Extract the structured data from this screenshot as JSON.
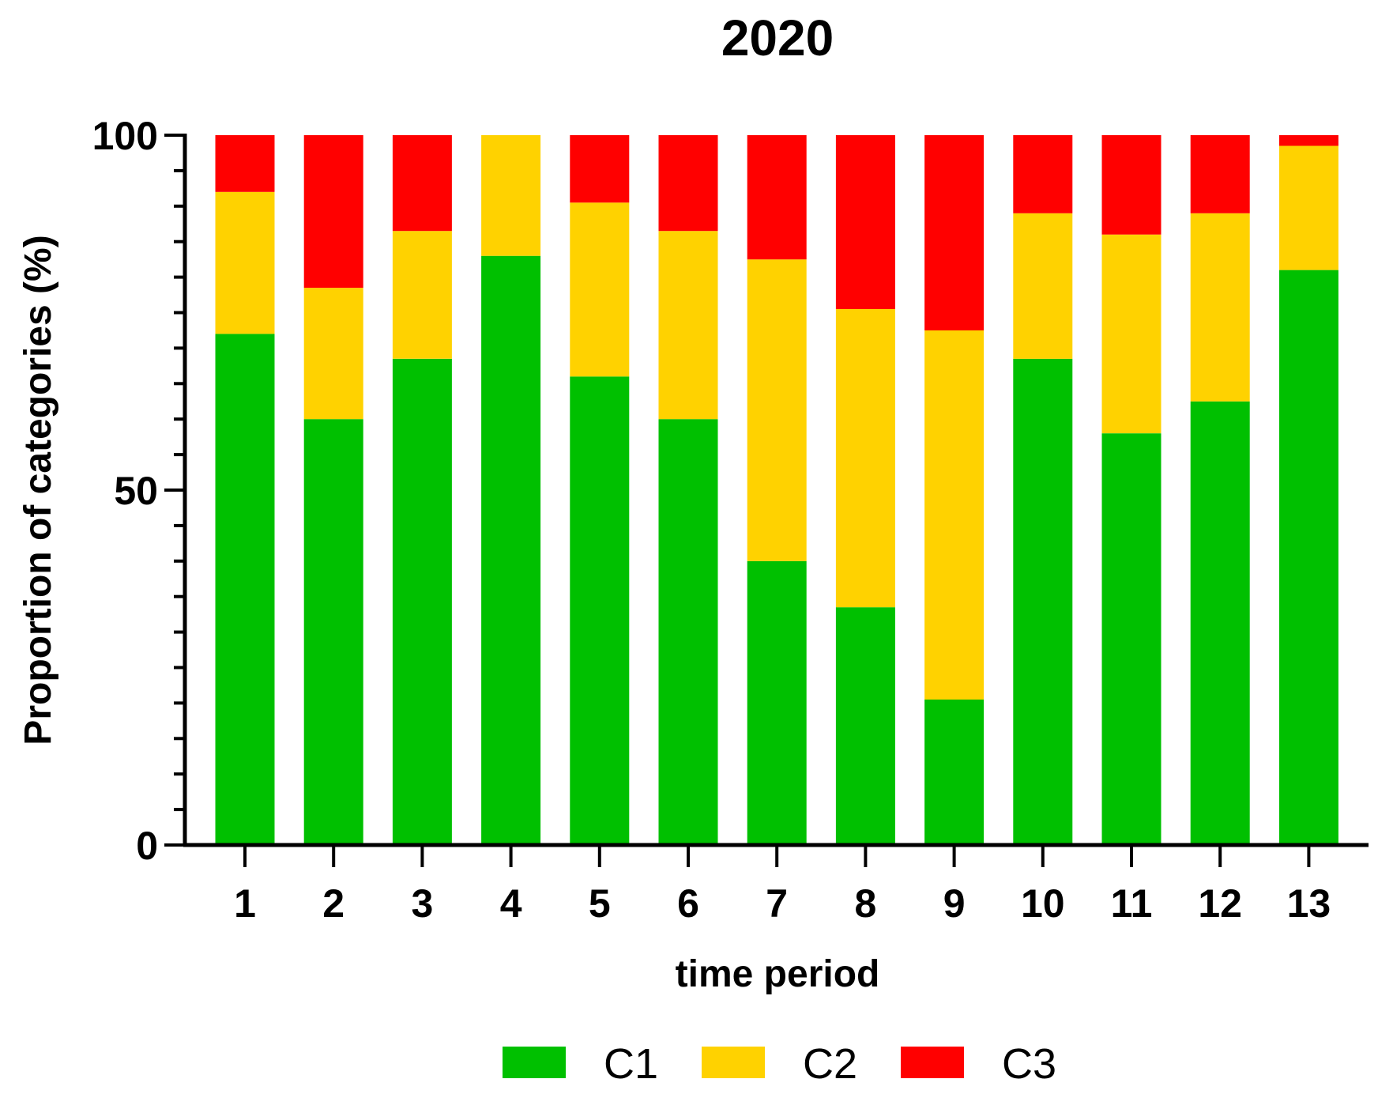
{
  "chart_data": {
    "type": "bar",
    "stacked": true,
    "title": "2020",
    "xlabel": "time period",
    "ylabel": "Proportion of categories (%)",
    "ylim": [
      0,
      100
    ],
    "yticks": [
      "0",
      "50",
      "100"
    ],
    "categories": [
      "1",
      "2",
      "3",
      "4",
      "5",
      "6",
      "7",
      "8",
      "9",
      "10",
      "11",
      "12",
      "13"
    ],
    "series": [
      {
        "name": "C1",
        "color": "#00c000",
        "values": [
          72,
          60,
          68.5,
          83,
          66,
          60,
          40,
          33.5,
          20.5,
          68.5,
          58,
          62.5,
          81
        ]
      },
      {
        "name": "C2",
        "color": "#ffd200",
        "values": [
          20,
          18.5,
          18,
          17,
          24.5,
          26.5,
          42.5,
          42,
          52,
          20.5,
          28,
          26.5,
          17.5
        ]
      },
      {
        "name": "C3",
        "color": "#ff0000",
        "values": [
          8,
          21.5,
          13.5,
          0,
          9.5,
          13.5,
          17.5,
          24.5,
          27.5,
          11,
          14,
          11,
          1.5
        ]
      }
    ],
    "legend_position": "bottom",
    "grid": false
  }
}
